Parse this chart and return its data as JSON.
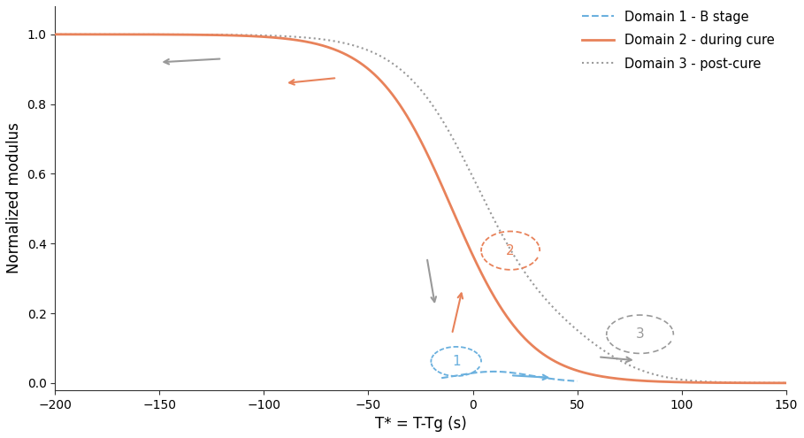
{
  "title": "",
  "xlabel": "T* = T-Tg (s)",
  "ylabel": "Normalized modulus",
  "xlim": [
    -200,
    150
  ],
  "ylim": [
    -0.02,
    1.08
  ],
  "yticks": [
    0.0,
    0.2,
    0.4,
    0.6,
    0.8,
    1.0
  ],
  "xticks": [
    -200,
    -150,
    -100,
    -50,
    0,
    50,
    100,
    150
  ],
  "domain1_color": "#6ab0de",
  "domain2_color": "#e8825a",
  "domain3_color": "#999999",
  "background": "#ffffff",
  "legend_labels": [
    "Domain 1 - B stage",
    "Domain 2 - during cure",
    "Domain 3 - post-cure"
  ]
}
